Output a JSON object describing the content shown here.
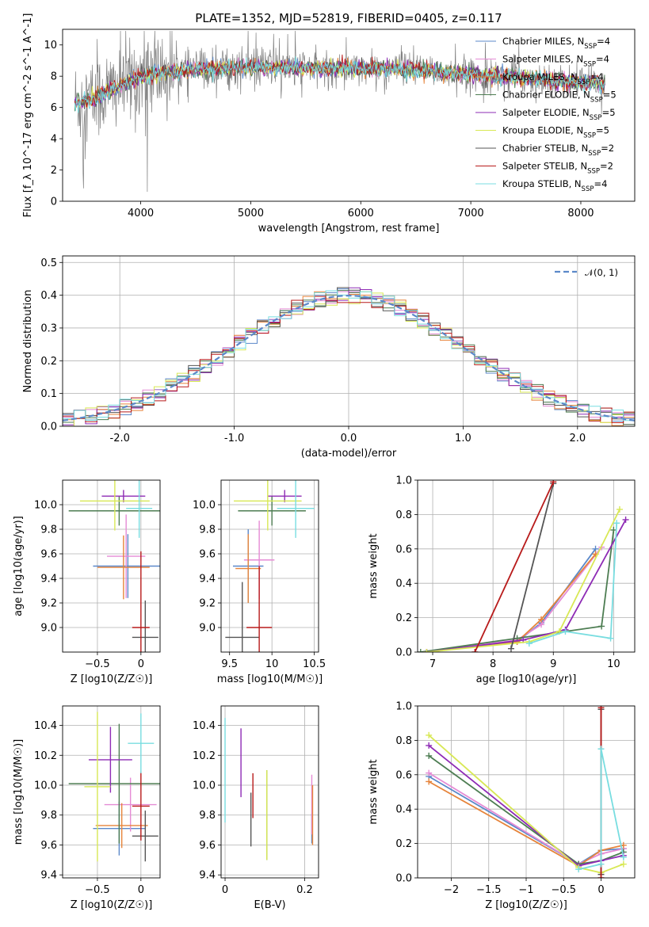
{
  "figure": {
    "title": "PLATE=1352, MJD=52819, FIBERID=0405, z=0.117"
  },
  "models": [
    {
      "name": "Chabrier MILES",
      "nssp": "4",
      "color": "#5b88c9"
    },
    {
      "name": "Salpeter MILES",
      "nssp": "4",
      "color": "#e58bd5"
    },
    {
      "name": "Kroupa MILES",
      "nssp": "4",
      "color": "#e6843b"
    },
    {
      "name": "Chabrier ELODIE",
      "nssp": "5",
      "color": "#4d7d52"
    },
    {
      "name": "Salpeter ELODIE",
      "nssp": "5",
      "color": "#8e2bb5"
    },
    {
      "name": "Kroupa ELODIE",
      "nssp": "5",
      "color": "#d8e855"
    },
    {
      "name": "Chabrier STELIB",
      "nssp": "2",
      "color": "#555555"
    },
    {
      "name": "Salpeter STELIB",
      "nssp": "2",
      "color": "#b81b1b"
    },
    {
      "name": "Kroupa STELIB",
      "nssp": "4",
      "color": "#78dde0"
    }
  ],
  "chart_data": [
    {
      "id": "spectrum",
      "type": "line",
      "xlabel": "wavelength [Angstrom, rest frame]",
      "ylabel": "Flux [f_λ 10^-17 erg cm^-2 s^-1 A^-1]",
      "xlim": [
        3290,
        8490
      ],
      "ylim": [
        0,
        11
      ],
      "xticks": [
        4000,
        5000,
        6000,
        7000,
        8000
      ],
      "yticks": [
        0,
        2,
        4,
        6,
        8,
        10
      ],
      "legend": "top-right",
      "continuum": [
        {
          "x": 3400,
          "y": 6.3
        },
        {
          "x": 3600,
          "y": 6.6
        },
        {
          "x": 3800,
          "y": 7.4
        },
        {
          "x": 4000,
          "y": 8.0
        },
        {
          "x": 4300,
          "y": 8.3
        },
        {
          "x": 4700,
          "y": 8.5
        },
        {
          "x": 5000,
          "y": 8.6
        },
        {
          "x": 5500,
          "y": 8.5
        },
        {
          "x": 6000,
          "y": 8.5
        },
        {
          "x": 6500,
          "y": 8.4
        },
        {
          "x": 7000,
          "y": 8.1
        },
        {
          "x": 7500,
          "y": 7.9
        },
        {
          "x": 8000,
          "y": 7.6
        },
        {
          "x": 8220,
          "y": 7.5
        }
      ]
    },
    {
      "id": "residuals",
      "type": "line",
      "xlabel": "(data-model)/error",
      "ylabel": "Normed distribution",
      "xlim": [
        -2.5,
        2.5
      ],
      "ylim": [
        0,
        0.52
      ],
      "xticks": [
        -2,
        -1,
        0,
        1,
        2
      ],
      "yticks": [
        0.0,
        0.1,
        0.2,
        0.3,
        0.4,
        0.5
      ],
      "legend": "top-right",
      "gaussian_label": "𝒩(0, 1)",
      "gaussian_color": "#5b88c9",
      "gaussian": {
        "mean": 0,
        "sigma": 1
      }
    },
    {
      "id": "age-vs-z",
      "type": "scatter",
      "xlabel": "Z [log10(Z/Z☉)]",
      "ylabel": "age [log10(age/yr)]",
      "xlim": [
        -0.9,
        0.22
      ],
      "ylim": [
        8.8,
        10.2
      ],
      "xticks": [
        -0.5,
        0.0
      ],
      "yticks": [
        9.0,
        9.2,
        9.4,
        9.6,
        9.8,
        10.0
      ],
      "points": [
        {
          "model": 0,
          "x": -0.15,
          "xerr": 0.4,
          "y": 9.5,
          "yerr": 0.26
        },
        {
          "model": 1,
          "x": -0.17,
          "xerr": 0.22,
          "y": 9.58,
          "yerr": 0.34
        },
        {
          "model": 2,
          "x": -0.2,
          "xerr": 0.3,
          "y": 9.49,
          "yerr": 0.26
        },
        {
          "model": 3,
          "x": -0.25,
          "xerr": 0.58,
          "y": 9.95,
          "yerr": 0.12
        },
        {
          "model": 4,
          "x": -0.2,
          "xerr": 0.25,
          "y": 10.07,
          "yerr": 0.05
        },
        {
          "model": 5,
          "x": -0.3,
          "xerr": 0.4,
          "y": 10.03,
          "yerr": 0.24
        },
        {
          "model": 6,
          "x": 0.05,
          "xerr": 0.15,
          "y": 8.92,
          "yerr": 0.3
        },
        {
          "model": 7,
          "x": 0.0,
          "xerr": 0.1,
          "y": 9.0,
          "yerr": 0.62
        },
        {
          "model": 8,
          "x": -0.02,
          "xerr": 0.15,
          "y": 9.97,
          "yerr": 0.24
        }
      ]
    },
    {
      "id": "age-vs-mass",
      "type": "scatter",
      "xlabel": "mass [log10(M/M☉)]",
      "ylabel": "",
      "xlim": [
        9.4,
        10.55
      ],
      "ylim": [
        8.8,
        10.2
      ],
      "xticks": [
        9.5,
        10.0,
        10.5
      ],
      "yticks": [
        9.0,
        9.2,
        9.4,
        9.6,
        9.8,
        10.0
      ],
      "points": [
        {
          "model": 0,
          "x": 9.72,
          "xerr": 0.18,
          "y": 9.5,
          "yerr": 0.3
        },
        {
          "model": 1,
          "x": 9.85,
          "xerr": 0.18,
          "y": 9.55,
          "yerr": 0.32
        },
        {
          "model": 2,
          "x": 9.72,
          "xerr": 0.15,
          "y": 9.48,
          "yerr": 0.28
        },
        {
          "model": 3,
          "x": 10.0,
          "xerr": 0.4,
          "y": 9.95,
          "yerr": 0.12
        },
        {
          "model": 4,
          "x": 10.15,
          "xerr": 0.2,
          "y": 10.07,
          "yerr": 0.05
        },
        {
          "model": 5,
          "x": 9.95,
          "xerr": 0.4,
          "y": 10.03,
          "yerr": 0.24
        },
        {
          "model": 6,
          "x": 9.65,
          "xerr": 0.2,
          "y": 8.92,
          "yerr": 0.45
        },
        {
          "model": 7,
          "x": 9.85,
          "xerr": 0.15,
          "y": 9.0,
          "yerr": 0.5
        },
        {
          "model": 8,
          "x": 10.28,
          "xerr": 0.22,
          "y": 9.97,
          "yerr": 0.24
        }
      ]
    },
    {
      "id": "mass-weight-vs-age",
      "type": "line",
      "xlabel": "age [log10(age/yr)]",
      "ylabel": "mass weight",
      "xlim": [
        6.75,
        10.35
      ],
      "ylim": [
        0,
        1.0
      ],
      "xticks": [
        7,
        8,
        9,
        10
      ],
      "yticks": [
        0.0,
        0.2,
        0.4,
        0.6,
        0.8,
        1.0
      ],
      "series": [
        {
          "model": 0,
          "x": [
            6.9,
            8.4,
            8.8,
            9.7
          ],
          "y": [
            0.0,
            0.06,
            0.17,
            0.6
          ]
        },
        {
          "model": 1,
          "x": [
            6.9,
            8.4,
            8.8,
            9.8
          ],
          "y": [
            0.0,
            0.07,
            0.16,
            0.61
          ]
        },
        {
          "model": 2,
          "x": [
            6.9,
            8.4,
            8.8,
            9.7
          ],
          "y": [
            0.0,
            0.06,
            0.19,
            0.57
          ]
        },
        {
          "model": 3,
          "x": [
            6.8,
            8.4,
            9.8,
            10.0
          ],
          "y": [
            0.0,
            0.08,
            0.15,
            0.71
          ]
        },
        {
          "model": 4,
          "x": [
            6.9,
            8.5,
            9.2,
            10.2
          ],
          "y": [
            0.0,
            0.07,
            0.13,
            0.77
          ]
        },
        {
          "model": 5,
          "x": [
            6.9,
            8.6,
            9.1,
            10.1
          ],
          "y": [
            0.0,
            0.06,
            0.12,
            0.83
          ]
        },
        {
          "model": 6,
          "x": [
            8.3,
            9.0
          ],
          "y": [
            0.02,
            0.98
          ]
        },
        {
          "model": 7,
          "x": [
            7.7,
            9.0
          ],
          "y": [
            0.0,
            0.99
          ]
        },
        {
          "model": 8,
          "x": [
            8.6,
            9.2,
            9.95,
            10.05
          ],
          "y": [
            0.05,
            0.12,
            0.08,
            0.75
          ]
        }
      ]
    },
    {
      "id": "mass-vs-z",
      "type": "scatter",
      "xlabel": "Z [log10(Z/Z☉)]",
      "ylabel": "mass [log10(M/M☉)]",
      "xlim": [
        -0.9,
        0.22
      ],
      "ylim": [
        9.38,
        10.53
      ],
      "xticks": [
        -0.5,
        0.0
      ],
      "yticks": [
        9.4,
        9.6,
        9.8,
        10.0,
        10.2,
        10.4
      ],
      "points": [
        {
          "model": 0,
          "x": -0.25,
          "xerr": 0.3,
          "y": 9.71,
          "yerr": 0.18
        },
        {
          "model": 1,
          "x": -0.12,
          "xerr": 0.3,
          "y": 9.87,
          "yerr": 0.18
        },
        {
          "model": 2,
          "x": -0.22,
          "xerr": 0.3,
          "y": 9.73,
          "yerr": 0.15
        },
        {
          "model": 3,
          "x": -0.25,
          "xerr": 0.58,
          "y": 10.01,
          "yerr": 0.4
        },
        {
          "model": 4,
          "x": -0.35,
          "xerr": 0.25,
          "y": 10.17,
          "yerr": 0.22
        },
        {
          "model": 5,
          "x": -0.5,
          "xerr": 0.15,
          "y": 9.99,
          "yerr": 0.5
        },
        {
          "model": 6,
          "x": 0.05,
          "xerr": 0.15,
          "y": 9.66,
          "yerr": 0.17
        },
        {
          "model": 7,
          "x": 0.0,
          "xerr": 0.1,
          "y": 9.86,
          "yerr": 0.23
        },
        {
          "model": 8,
          "x": 0.0,
          "xerr": 0.15,
          "y": 10.28,
          "yerr": 0.2
        }
      ]
    },
    {
      "id": "mass-vs-ebv",
      "type": "scatter",
      "xlabel": "E(B-V)",
      "ylabel": "",
      "xlim": [
        -0.01,
        0.235
      ],
      "ylim": [
        9.38,
        10.53
      ],
      "xticks": [
        0.0,
        0.2
      ],
      "yticks": [
        9.4,
        9.6,
        9.8,
        10.0,
        10.2,
        10.4
      ],
      "points": [
        {
          "model": 0,
          "x": 0.218,
          "xerr": 0,
          "y": 9.71,
          "yerr": 0.1
        },
        {
          "model": 1,
          "x": 0.218,
          "xerr": 0,
          "y": 9.87,
          "yerr": 0.2
        },
        {
          "model": 2,
          "x": 0.22,
          "xerr": 0,
          "y": 9.8,
          "yerr": 0.2
        },
        {
          "model": 3,
          "x": 0.105,
          "xerr": 0,
          "y": 9.8,
          "yerr": 0.3
        },
        {
          "model": 4,
          "x": 0.04,
          "xerr": 0,
          "y": 10.15,
          "yerr": 0.23
        },
        {
          "model": 5,
          "x": 0.105,
          "xerr": 0,
          "y": 9.8,
          "yerr": 0.3
        },
        {
          "model": 6,
          "x": 0.065,
          "xerr": 0,
          "y": 9.77,
          "yerr": 0.18
        },
        {
          "model": 7,
          "x": 0.07,
          "xerr": 0,
          "y": 9.93,
          "yerr": 0.15
        },
        {
          "model": 8,
          "x": 0.0,
          "xerr": 0,
          "y": 10.1,
          "yerr": 0.35
        }
      ]
    },
    {
      "id": "mass-weight-vs-z",
      "type": "line",
      "xlabel": "Z [log10(Z/Z☉)]",
      "ylabel": "mass weight",
      "xlim": [
        -2.45,
        0.45
      ],
      "ylim": [
        0,
        1.0
      ],
      "xticks": [
        -2.0,
        -1.5,
        -1.0,
        -0.5,
        0.0
      ],
      "yticks": [
        0.0,
        0.2,
        0.4,
        0.6,
        0.8,
        1.0
      ],
      "series": [
        {
          "model": 0,
          "x": [
            -2.3,
            -0.3,
            0.0,
            0.3
          ],
          "y": [
            0.59,
            0.08,
            0.16,
            0.17
          ]
        },
        {
          "model": 1,
          "x": [
            -2.3,
            -0.3,
            0.0,
            0.3
          ],
          "y": [
            0.61,
            0.08,
            0.14,
            0.17
          ]
        },
        {
          "model": 2,
          "x": [
            -2.3,
            -0.3,
            0.0,
            0.3
          ],
          "y": [
            0.56,
            0.07,
            0.16,
            0.19
          ]
        },
        {
          "model": 3,
          "x": [
            -2.3,
            -0.3,
            0.0,
            0.3
          ],
          "y": [
            0.71,
            0.08,
            0.1,
            0.15
          ]
        },
        {
          "model": 4,
          "x": [
            -2.3,
            -0.3,
            0.0,
            0.3
          ],
          "y": [
            0.77,
            0.07,
            0.1,
            0.13
          ]
        },
        {
          "model": 5,
          "x": [
            -2.3,
            -0.3,
            0.0,
            0.3
          ],
          "y": [
            0.83,
            0.06,
            0.03,
            0.08
          ]
        },
        {
          "model": 6,
          "x": [
            0.0,
            0.0
          ],
          "y": [
            0.02,
            0.98
          ]
        },
        {
          "model": 7,
          "x": [
            0.0,
            0.0
          ],
          "y": [
            0.0,
            0.99
          ]
        },
        {
          "model": 8,
          "x": [
            -0.3,
            0.0,
            0.0,
            0.3
          ],
          "y": [
            0.05,
            0.08,
            0.75,
            0.12
          ]
        }
      ]
    }
  ]
}
